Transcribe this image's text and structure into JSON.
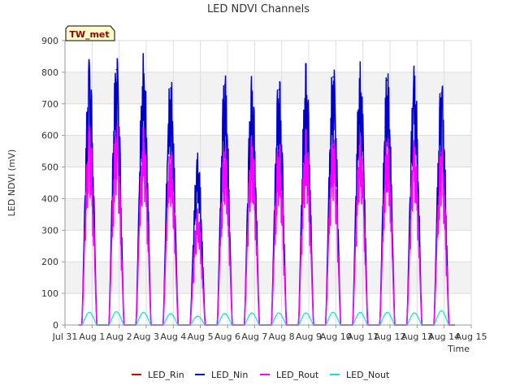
{
  "chart_data": {
    "type": "line",
    "title": "LED NDVI Channels",
    "xlabel": "Time",
    "ylabel": "LED NDVI (mV)",
    "ylim": [
      0,
      900
    ],
    "yticks": [
      0,
      100,
      200,
      300,
      400,
      500,
      600,
      700,
      800,
      900
    ],
    "x_range_days": [
      0,
      15
    ],
    "xticks": [
      {
        "day": 0,
        "label": "Jul 31"
      },
      {
        "day": 1,
        "label": "Aug 1"
      },
      {
        "day": 2,
        "label": "Aug 2"
      },
      {
        "day": 3,
        "label": "Aug 3"
      },
      {
        "day": 4,
        "label": "Aug 4"
      },
      {
        "day": 5,
        "label": "Aug 5"
      },
      {
        "day": 6,
        "label": "Aug 6"
      },
      {
        "day": 7,
        "label": "Aug 7"
      },
      {
        "day": 8,
        "label": "Aug 8"
      },
      {
        "day": 9,
        "label": "Aug 9"
      },
      {
        "day": 10,
        "label": "Aug 10"
      },
      {
        "day": 11,
        "label": "Aug 11"
      },
      {
        "day": 12,
        "label": "Aug 12"
      },
      {
        "day": 13,
        "label": "Aug 13"
      },
      {
        "day": 14,
        "label": "Aug 14"
      },
      {
        "day": 15,
        "label": "Aug 15"
      }
    ],
    "grid": true,
    "legend_position": "bottom",
    "site_label": "TW_met",
    "daily_peak_day_offset": 0.5,
    "series": [
      {
        "name": "LED_Rin",
        "color": "#cc0000",
        "peaks": [],
        "peak_day": []
      },
      {
        "name": "LED_Nin",
        "color": "#0000cc",
        "peak_day": [
          0.9,
          1.9,
          2.9,
          3.9,
          4.9,
          5.9,
          6.9,
          7.9,
          8.9,
          9.9,
          10.9,
          11.9,
          12.9,
          13.9
        ],
        "peaks": [
          790,
          808,
          808,
          750,
          518,
          760,
          742,
          745,
          780,
          785,
          785,
          775,
          778,
          735
        ]
      },
      {
        "name": "LED_Rout",
        "color": "#ff00ff",
        "peak_day": [
          0.9,
          1.9,
          2.9,
          3.9,
          4.9,
          5.9,
          6.9,
          7.9,
          8.9,
          9.9,
          10.9,
          11.9,
          12.9,
          13.9
        ],
        "peaks": [
          595,
          605,
          588,
          535,
          350,
          548,
          565,
          552,
          583,
          570,
          573,
          575,
          555,
          545
        ]
      },
      {
        "name": "LED_Nout",
        "color": "#00e5ee",
        "peak_day": [
          0.9,
          1.9,
          2.9,
          3.9,
          4.9,
          5.9,
          6.9,
          7.9,
          8.9,
          9.9,
          10.9,
          11.9,
          12.9,
          13.9
        ],
        "peaks": [
          40,
          42,
          40,
          36,
          28,
          36,
          38,
          38,
          38,
          40,
          40,
          40,
          38,
          45
        ]
      }
    ]
  }
}
